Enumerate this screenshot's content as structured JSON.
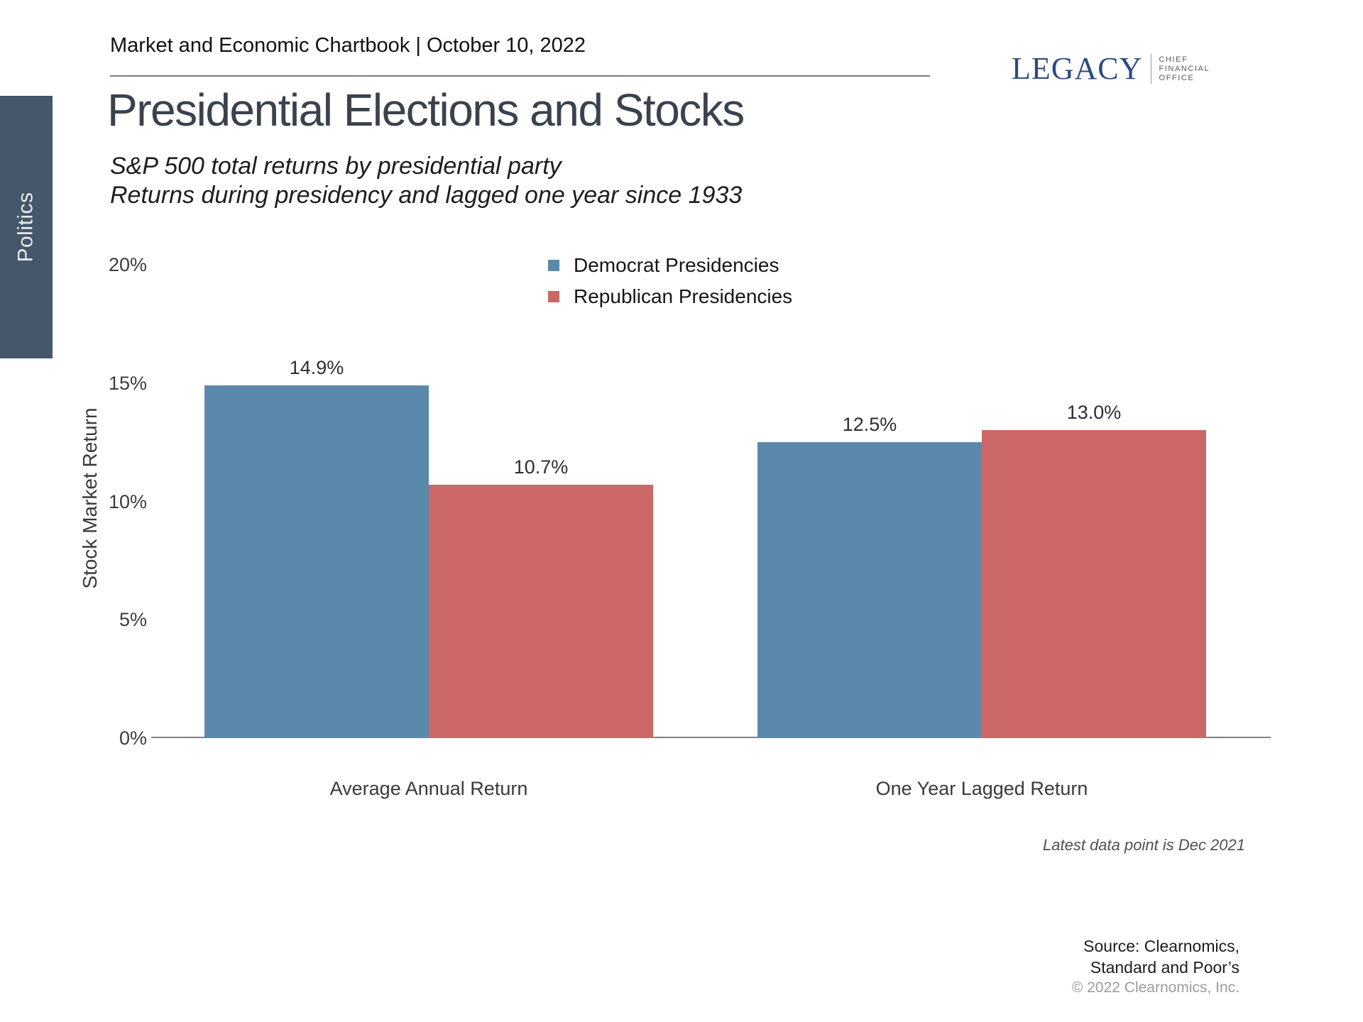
{
  "header": {
    "chartbook": "Market and Economic Chartbook | October 10, 2022",
    "logo": {
      "brand": "LEGACY",
      "suffix_lines": [
        "CHIEF",
        "FINANCIAL",
        "OFFICE"
      ]
    }
  },
  "sidebar": {
    "tab": "Politics"
  },
  "title": "Presidential Elections and Stocks",
  "subtitle_lines": [
    "S&P 500 total returns by presidential party",
    "Returns during presidency and lagged one year since 1933"
  ],
  "chart_data": {
    "type": "bar",
    "categories": [
      "Average Annual Return",
      "One Year Lagged Return"
    ],
    "series": [
      {
        "name": "Democrat Presidencies",
        "color": "#5b89ac",
        "values": [
          14.9,
          12.5
        ],
        "labels": [
          "14.9%",
          "12.5%"
        ]
      },
      {
        "name": "Republican Presidencies",
        "color": "#cc6767",
        "values": [
          10.7,
          13.0
        ],
        "labels": [
          "10.7%",
          "13.0%"
        ]
      }
    ],
    "ylabel": "Stock Market Return",
    "xlabel": "",
    "ylim": [
      0,
      20
    ],
    "yticks": [
      {
        "value": 0,
        "label": "0%"
      },
      {
        "value": 5,
        "label": "5%"
      },
      {
        "value": 10,
        "label": "10%"
      },
      {
        "value": 15,
        "label": "15%"
      },
      {
        "value": 20,
        "label": "20%"
      }
    ],
    "grid": false,
    "legend_position": "top-center"
  },
  "footer": {
    "latest_note": "Latest data point is Dec 2021",
    "source_lines": [
      "Source: Clearnomics,",
      "Standard and Poor’s"
    ],
    "copyright": "© 2022 Clearnomics, Inc."
  },
  "colors": {
    "democrat": "#5b89ac",
    "republican": "#cc6767",
    "tab_background": "#46566b",
    "brand_navy": "#2a4a80"
  }
}
